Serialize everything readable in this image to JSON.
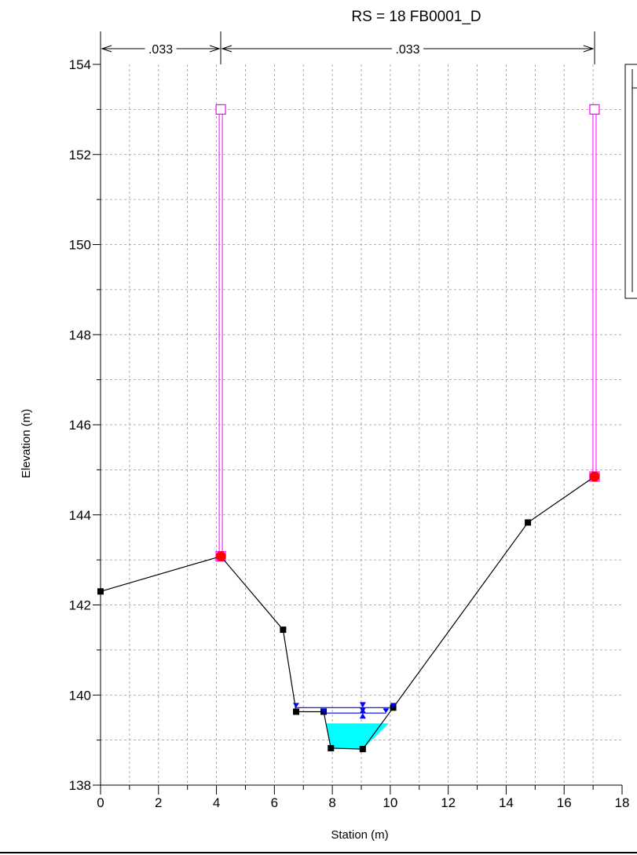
{
  "chart_data": {
    "type": "line",
    "title": "RS = 18  FB0001_D",
    "xlabel": "Station (m)",
    "ylabel": "Elevation (m)",
    "xlim": [
      0,
      18
    ],
    "ylim": [
      138,
      154
    ],
    "x_ticks": [
      0,
      2,
      4,
      6,
      8,
      10,
      12,
      14,
      16,
      18
    ],
    "y_ticks": [
      138,
      140,
      142,
      144,
      146,
      148,
      150,
      152,
      154
    ],
    "grid": true,
    "manning_n": [
      {
        "label": ".033",
        "x_start": 0,
        "x_end": 4.15
      },
      {
        "label": ".033",
        "x_start": 4.15,
        "x_end": 17.05
      }
    ],
    "ground": {
      "x": [
        0,
        4.15,
        6.3,
        6.75,
        7.7,
        7.95,
        9.05,
        10.1,
        14.75,
        17.05
      ],
      "y": [
        142.3,
        143.08,
        141.45,
        139.63,
        139.63,
        138.82,
        138.8,
        139.72,
        143.83,
        144.85
      ]
    },
    "water_fill": {
      "x": [
        7.8,
        9.95,
        9.05,
        7.95
      ],
      "y": [
        139.37,
        139.37,
        138.8,
        138.82
      ]
    },
    "water_surfaces": [
      {
        "x1": 6.75,
        "x2": 10.1,
        "y": 139.72,
        "marker_x": 9.05
      },
      {
        "x1": 7.7,
        "x2": 9.85,
        "y": 139.6,
        "marker_x": 9.05
      }
    ],
    "bank_stations": [
      {
        "x": 4.15,
        "y": 143.08
      },
      {
        "x": 17.05,
        "y": 144.85
      }
    ],
    "levees": [
      {
        "x": 4.15,
        "y_top": 153.0,
        "y_bottom": 143.08
      },
      {
        "x": 17.05,
        "y_top": 153.0,
        "y_bottom": 144.85
      }
    ],
    "colors": {
      "ground": "#000000",
      "water_fill": "#00ffff",
      "water_surface": "#0000ff",
      "bank_station": "#ff0000",
      "levee": "#ff00ff",
      "grid": "#999999"
    }
  }
}
